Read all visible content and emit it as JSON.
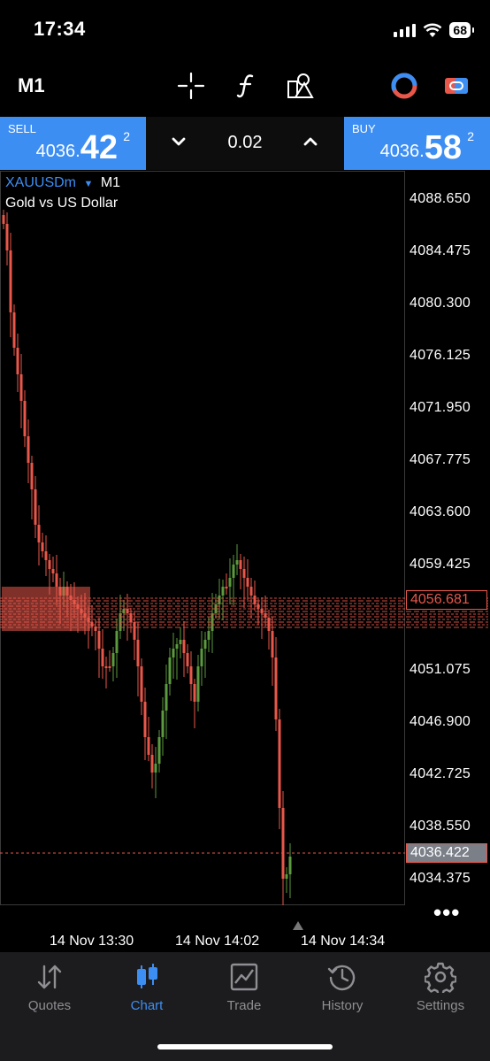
{
  "status_bar": {
    "time": "17:34",
    "battery": "68"
  },
  "toolbar": {
    "timeframe": "M1"
  },
  "trade": {
    "sell_label": "SELL",
    "sell_price_small": "4036.",
    "sell_price_big": "42",
    "sell_price_sup": "2",
    "buy_label": "BUY",
    "buy_price_small": "4036.",
    "buy_price_big": "58",
    "buy_price_sup": "2",
    "lot": "0.02"
  },
  "chart": {
    "symbol": "XAUUSDm",
    "timeframe": "M1",
    "description": "Gold vs US Dollar",
    "price_labels": [
      "4088.650",
      "4084.475",
      "4080.300",
      "4076.125",
      "4071.950",
      "4067.775",
      "4063.600",
      "4059.425",
      "4051.075",
      "4046.900",
      "4042.725",
      "4038.550",
      "4034.375"
    ],
    "sell_line_price": "4056.681",
    "current_price": "4036.422",
    "time_labels": [
      "14 Nov 13:30",
      "14 Nov 14:02",
      "14 Nov 14:34"
    ],
    "more": "•••",
    "colors": {
      "bull": "#5b9a3e",
      "bear": "#e8574a",
      "sell_line": "#e8574a"
    }
  },
  "tabs": [
    {
      "label": "Quotes",
      "icon": "quotes-arrows-icon"
    },
    {
      "label": "Chart",
      "icon": "candlestick-icon",
      "active": true
    },
    {
      "label": "Trade",
      "icon": "trade-chart-icon"
    },
    {
      "label": "History",
      "icon": "history-clock-icon"
    },
    {
      "label": "Settings",
      "icon": "gear-icon"
    }
  ]
}
